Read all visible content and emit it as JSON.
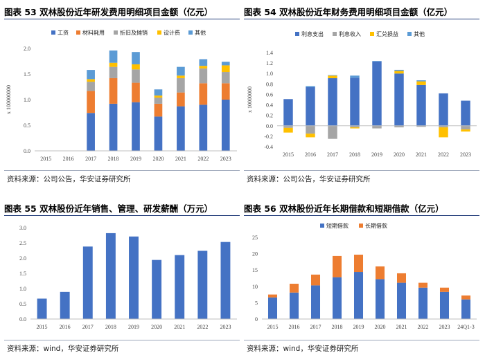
{
  "panels": [
    {
      "title": "图表 53 双林股份近年研发费用明细项目金额（亿元）",
      "source": "资料来源：公司公告，华安证券研究所"
    },
    {
      "title": "图表 54 双林股份近年财务费用明细项目金额（亿元）",
      "source": "资料来源：公司公告，华安证券研究所"
    },
    {
      "title": "图表 55 双林股份近年销售、管理、研发薪酬（万元）",
      "source": "资料来源：wind，华安证券研究所"
    },
    {
      "title": "图表 56 双林股份近年长期借款和短期借款（亿元）",
      "source": "资料来源：wind，华安证券研究所"
    }
  ],
  "chart_data": [
    {
      "type": "bar",
      "stacked": true,
      "categories": [
        "2015",
        "2016",
        "2017",
        "2018",
        "2019",
        "2020",
        "2021",
        "2022",
        "2023"
      ],
      "ylabel": "x 100000000",
      "ylim": [
        0,
        2.0
      ],
      "yticks": [
        0.0,
        0.5,
        1.0,
        1.5,
        2.0
      ],
      "legend_position": "top",
      "series": [
        {
          "name": "工资",
          "color": "#4472c4",
          "values": [
            0,
            0,
            0.74,
            0.92,
            0.95,
            0.67,
            0.87,
            0.9,
            1.0
          ]
        },
        {
          "name": "材料耗用",
          "color": "#ed7d31",
          "values": [
            0,
            0,
            0.43,
            0.5,
            0.38,
            0.25,
            0.27,
            0.42,
            0.32
          ]
        },
        {
          "name": "折旧及摊销",
          "color": "#a5a5a5",
          "values": [
            0,
            0,
            0.18,
            0.22,
            0.26,
            0.12,
            0.28,
            0.29,
            0.22
          ]
        },
        {
          "name": "设计费",
          "color": "#ffc000",
          "values": [
            0,
            0,
            0.05,
            0.08,
            0.1,
            0.04,
            0.05,
            0.05,
            0.13
          ]
        },
        {
          "name": "其他",
          "color": "#5b9bd5",
          "values": [
            0,
            0,
            0.18,
            0.24,
            0.24,
            0.12,
            0.17,
            0.13,
            0.07
          ]
        }
      ]
    },
    {
      "type": "bar",
      "stacked": true,
      "categories": [
        "2015",
        "2016",
        "2017",
        "2018",
        "2019",
        "2020",
        "2021",
        "2022",
        "2023"
      ],
      "ylabel": "x 10000000",
      "ylim": [
        -0.4,
        1.4
      ],
      "yticks": [
        -0.4,
        -0.2,
        0,
        0.2,
        0.4,
        0.6,
        0.8,
        1.0,
        1.2,
        1.4
      ],
      "legend_position": "top",
      "series": [
        {
          "name": "利息支出",
          "color": "#4472c4",
          "values": [
            0.51,
            0.74,
            0.91,
            0.92,
            1.23,
            1.0,
            0.78,
            0.62,
            0.48
          ]
        },
        {
          "name": "利息收入",
          "color": "#a5a5a5",
          "values": [
            -0.04,
            -0.15,
            -0.25,
            -0.03,
            -0.05,
            -0.03,
            -0.02,
            -0.03,
            -0.07
          ]
        },
        {
          "name": "汇兑损益",
          "color": "#ffc000",
          "values": [
            -0.09,
            -0.07,
            0.05,
            -0.02,
            0.0,
            0.05,
            0.07,
            -0.19,
            -0.04
          ]
        },
        {
          "name": "其他",
          "color": "#5b9bd5",
          "values": [
            0.0,
            0.02,
            0.01,
            0.04,
            0.01,
            0.02,
            0.02,
            0.0,
            0.0
          ]
        }
      ]
    },
    {
      "type": "bar",
      "categories": [
        "2015",
        "2016",
        "2017",
        "2018",
        "2019",
        "2020",
        "2021",
        "2022",
        "2023"
      ],
      "ylim": [
        0,
        3.0
      ],
      "yticks": [
        0.0,
        0.5,
        1.0,
        1.5,
        2.0,
        2.5,
        3.0
      ],
      "series": [
        {
          "color": "#4472c4",
          "values": [
            0.67,
            0.89,
            2.38,
            2.82,
            2.71,
            1.94,
            2.1,
            2.24,
            2.53
          ]
        }
      ]
    },
    {
      "type": "bar",
      "stacked": true,
      "categories": [
        "2015",
        "2016",
        "2017",
        "2018",
        "2019",
        "2020",
        "2021",
        "2022",
        "2023",
        "24Q1-3"
      ],
      "ylim": [
        0,
        25
      ],
      "yticks": [
        0,
        5,
        10,
        15,
        20,
        25
      ],
      "legend_position": "top",
      "series": [
        {
          "name": "短期借款",
          "color": "#4472c4",
          "values": [
            6.6,
            8.1,
            10.3,
            12.8,
            14.4,
            12.2,
            11.1,
            9.6,
            8.3,
            6.0
          ]
        },
        {
          "name": "长期借款",
          "color": "#ed7d31",
          "values": [
            0.9,
            2.7,
            3.3,
            6.5,
            5.3,
            3.9,
            2.9,
            1.5,
            1.3,
            1.2
          ]
        }
      ]
    }
  ]
}
